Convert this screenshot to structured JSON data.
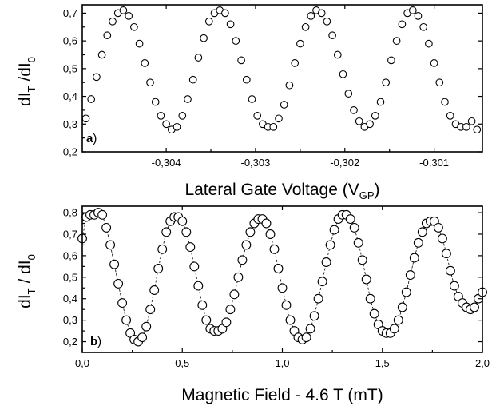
{
  "chart_data": [
    {
      "type": "scatter",
      "panel_label": {
        "bold": "a",
        "rest": ")"
      },
      "xlabel": {
        "text": "Lateral Gate Voltage (V",
        "sub": "GP",
        "end": ")"
      },
      "ylabel": {
        "d1": "dI",
        "sub1": "T",
        "mid": " /dI",
        "sub2": "0"
      },
      "xlim": [
        -0.30494,
        -0.30046
      ],
      "ylim": [
        0.2,
        0.73
      ],
      "xticks": [
        -0.304,
        -0.303,
        -0.302,
        -0.301
      ],
      "xtick_labels": [
        "-0,304",
        "-0,303",
        "-0,302",
        "-0,301"
      ],
      "yticks": [
        0.2,
        0.3,
        0.4,
        0.5,
        0.6,
        0.7
      ],
      "ytick_labels": [
        "0,2",
        "0,3",
        "0,4",
        "0,5",
        "0,6",
        "0,7"
      ],
      "marker": "open-circle",
      "grid": false,
      "x": [
        -0.3049,
        -0.30484,
        -0.30478,
        -0.30472,
        -0.30466,
        -0.3046,
        -0.30454,
        -0.30448,
        -0.30442,
        -0.30436,
        -0.3043,
        -0.30424,
        -0.30418,
        -0.30412,
        -0.30406,
        -0.304,
        -0.30394,
        -0.30388,
        -0.30382,
        -0.30376,
        -0.3037,
        -0.30364,
        -0.30358,
        -0.30352,
        -0.30346,
        -0.3034,
        -0.30334,
        -0.30328,
        -0.30322,
        -0.30316,
        -0.3031,
        -0.30304,
        -0.30298,
        -0.30292,
        -0.30286,
        -0.3028,
        -0.30274,
        -0.30268,
        -0.30262,
        -0.30256,
        -0.3025,
        -0.30244,
        -0.30238,
        -0.30232,
        -0.30226,
        -0.3022,
        -0.30214,
        -0.30208,
        -0.30202,
        -0.30196,
        -0.3019,
        -0.30184,
        -0.30178,
        -0.30172,
        -0.30166,
        -0.3016,
        -0.30154,
        -0.30148,
        -0.30142,
        -0.30136,
        -0.3013,
        -0.30124,
        -0.30118,
        -0.30112,
        -0.30106,
        -0.301,
        -0.30094,
        -0.30088,
        -0.30082,
        -0.30076,
        -0.3007,
        -0.30064,
        -0.30058,
        -0.30052
      ],
      "y": [
        0.32,
        0.39,
        0.47,
        0.55,
        0.62,
        0.67,
        0.7,
        0.71,
        0.69,
        0.65,
        0.59,
        0.52,
        0.45,
        0.38,
        0.33,
        0.3,
        0.28,
        0.29,
        0.33,
        0.39,
        0.46,
        0.54,
        0.61,
        0.67,
        0.7,
        0.71,
        0.7,
        0.66,
        0.6,
        0.53,
        0.46,
        0.39,
        0.33,
        0.3,
        0.29,
        0.29,
        0.32,
        0.37,
        0.44,
        0.52,
        0.59,
        0.65,
        0.69,
        0.71,
        0.7,
        0.67,
        0.62,
        0.55,
        0.48,
        0.41,
        0.35,
        0.31,
        0.29,
        0.3,
        0.33,
        0.38,
        0.45,
        0.53,
        0.6,
        0.66,
        0.7,
        0.71,
        0.69,
        0.65,
        0.59,
        0.52,
        0.45,
        0.38,
        0.33,
        0.3,
        0.29,
        0.29,
        0.31,
        0.28
      ]
    },
    {
      "type": "scatter",
      "panel_label": {
        "bold": "b",
        "rest": ")"
      },
      "xlabel": {
        "text": "Magnetic Field - 4.6 T (mT)",
        "sub": "",
        "end": ""
      },
      "ylabel": {
        "d1": "dI",
        "sub1": "T",
        "mid": " / dI",
        "sub2": "0"
      },
      "xlim": [
        0.0,
        2.0
      ],
      "ylim": [
        0.15,
        0.83
      ],
      "xticks": [
        0.0,
        0.5,
        1.0,
        1.5,
        2.0
      ],
      "xtick_labels": [
        "0,0",
        "0,5",
        "1,0",
        "1,5",
        "2,0"
      ],
      "yticks": [
        0.2,
        0.3,
        0.4,
        0.5,
        0.6,
        0.7,
        0.8
      ],
      "ytick_labels": [
        "0,2",
        "0,3",
        "0,4",
        "0,5",
        "0,6",
        "0,7",
        "0,8"
      ],
      "marker": "open-circle",
      "connector": "dashed",
      "grid": false,
      "x": [
        0.0,
        0.02,
        0.04,
        0.06,
        0.08,
        0.1,
        0.12,
        0.14,
        0.16,
        0.18,
        0.2,
        0.22,
        0.24,
        0.26,
        0.28,
        0.3,
        0.32,
        0.34,
        0.36,
        0.38,
        0.4,
        0.42,
        0.44,
        0.46,
        0.48,
        0.5,
        0.52,
        0.54,
        0.56,
        0.58,
        0.6,
        0.62,
        0.64,
        0.66,
        0.68,
        0.7,
        0.72,
        0.74,
        0.76,
        0.78,
        0.8,
        0.82,
        0.84,
        0.86,
        0.88,
        0.9,
        0.92,
        0.94,
        0.96,
        0.98,
        1.0,
        1.02,
        1.04,
        1.06,
        1.08,
        1.1,
        1.12,
        1.14,
        1.16,
        1.18,
        1.2,
        1.22,
        1.24,
        1.26,
        1.28,
        1.3,
        1.32,
        1.34,
        1.36,
        1.38,
        1.4,
        1.42,
        1.44,
        1.46,
        1.48,
        1.5,
        1.52,
        1.54,
        1.56,
        1.58,
        1.6,
        1.62,
        1.64,
        1.66,
        1.68,
        1.7,
        1.72,
        1.74,
        1.76,
        1.78,
        1.8,
        1.82,
        1.84,
        1.86,
        1.88,
        1.9,
        1.92,
        1.94,
        1.96,
        1.98,
        2.0
      ],
      "y": [
        0.68,
        0.78,
        0.79,
        0.79,
        0.8,
        0.79,
        0.73,
        0.65,
        0.56,
        0.47,
        0.38,
        0.3,
        0.24,
        0.21,
        0.2,
        0.22,
        0.27,
        0.35,
        0.44,
        0.54,
        0.63,
        0.71,
        0.76,
        0.78,
        0.78,
        0.76,
        0.71,
        0.64,
        0.55,
        0.46,
        0.37,
        0.3,
        0.26,
        0.25,
        0.25,
        0.26,
        0.29,
        0.35,
        0.42,
        0.5,
        0.58,
        0.65,
        0.71,
        0.75,
        0.77,
        0.77,
        0.75,
        0.7,
        0.63,
        0.54,
        0.45,
        0.37,
        0.3,
        0.25,
        0.22,
        0.21,
        0.22,
        0.26,
        0.32,
        0.4,
        0.48,
        0.57,
        0.65,
        0.72,
        0.77,
        0.79,
        0.79,
        0.77,
        0.73,
        0.66,
        0.58,
        0.49,
        0.4,
        0.33,
        0.28,
        0.25,
        0.24,
        0.24,
        0.26,
        0.3,
        0.36,
        0.43,
        0.51,
        0.59,
        0.66,
        0.71,
        0.75,
        0.76,
        0.76,
        0.73,
        0.68,
        0.61,
        0.53,
        0.46,
        0.41,
        0.38,
        0.36,
        0.35,
        0.36,
        0.4,
        0.43
      ]
    }
  ]
}
